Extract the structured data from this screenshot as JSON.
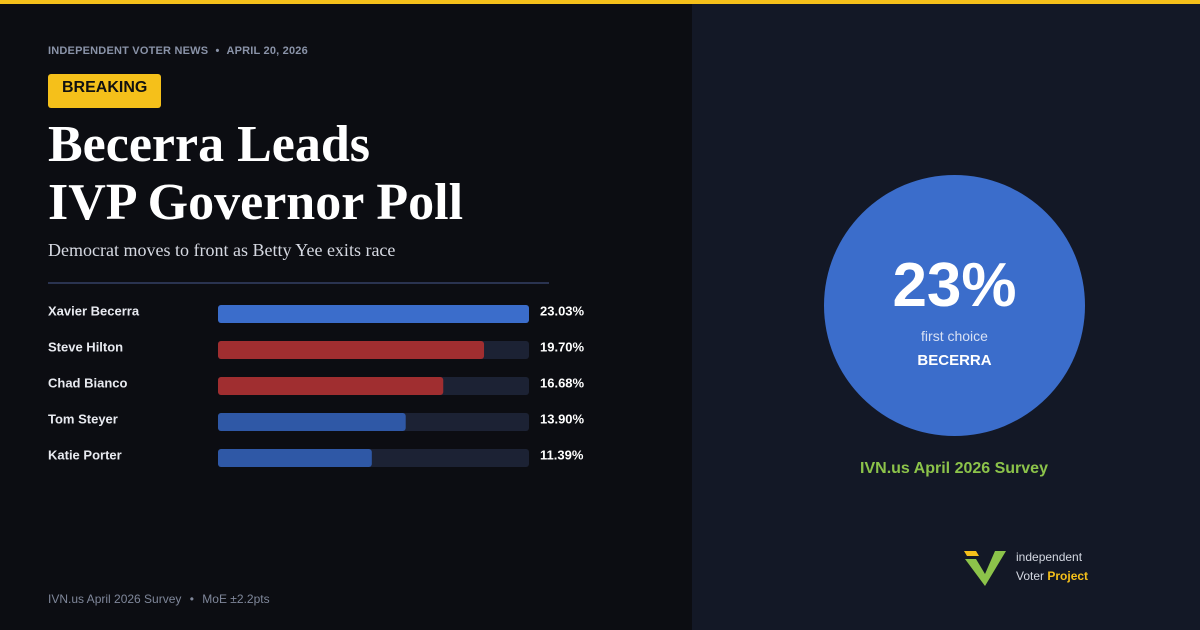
{
  "header": {
    "source": "INDEPENDENT VOTER NEWS",
    "date": "APRIL 20, 2026",
    "badge": "BREAKING"
  },
  "headline": {
    "lines": [
      "Becerra Leads",
      "IVP Governor Poll"
    ],
    "subtitle": "Democrat moves to front as Betty Yee exits race"
  },
  "chart_data": {
    "type": "bar",
    "orientation": "horizontal",
    "categories": [
      "Xavier Becerra",
      "Steve Hilton",
      "Chad Bianco",
      "Tom Steyer",
      "Katie Porter"
    ],
    "values": [
      23.03,
      19.7,
      16.68,
      13.9,
      11.39
    ],
    "value_labels": [
      "23.03%",
      "19.70%",
      "16.68%",
      "13.90%",
      "11.39%"
    ],
    "colors": [
      "#3b6dcb",
      "#a02e30",
      "#a02e30",
      "#2f58a6",
      "#2f58a6"
    ],
    "track_color": "#1c2234",
    "xlim": [
      0,
      23.03
    ]
  },
  "callout": {
    "big": "23%",
    "caption": "first choice",
    "name": "BECERRA",
    "survey": "IVN.us April 2026 Survey"
  },
  "footer": {
    "source": "IVN.us April 2026 Survey",
    "moe": "MoE ±2.2pts"
  },
  "logo": {
    "line1": "independent",
    "line2a": "Voter",
    "line2b": "Project"
  }
}
